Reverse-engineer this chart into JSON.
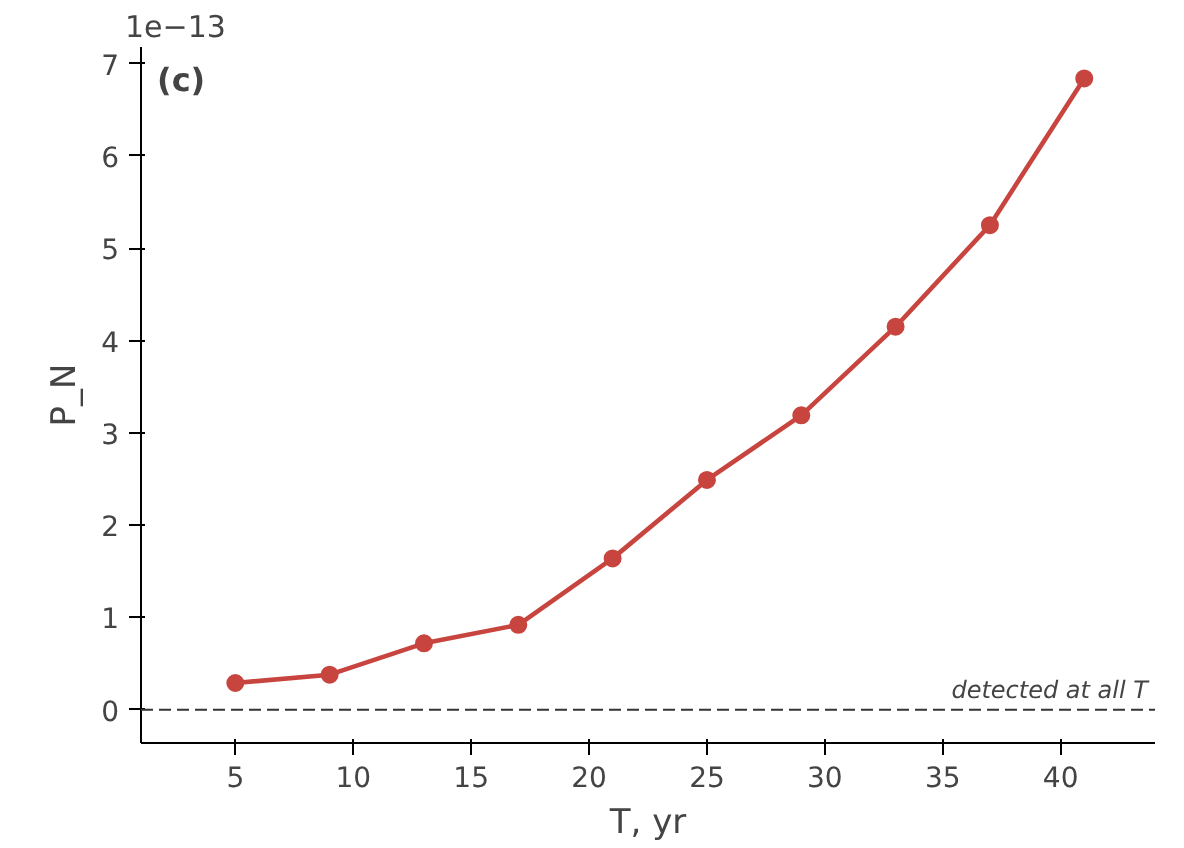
{
  "chart_data": {
    "type": "line",
    "title": "(c)",
    "xlabel": "T, yr",
    "ylabel": "P_N",
    "x": [
      5,
      9,
      13,
      17,
      21,
      25,
      29,
      33,
      37,
      41
    ],
    "series": [
      {
        "color": "#c8453f",
        "values": [
          0.29,
          0.38,
          0.72,
          0.92,
          1.64,
          2.49,
          3.19,
          4.15,
          5.25,
          6.84
        ]
      }
    ],
    "marker": "circle",
    "line_style": "solid",
    "xlim": [
      1,
      44
    ],
    "xticks": [
      5,
      10,
      15,
      20,
      25,
      30,
      35,
      40
    ],
    "ylim": [
      -0.36,
      7.18
    ],
    "yticks": [
      0,
      1,
      2,
      3,
      4,
      5,
      6,
      7
    ],
    "ref_lines": [
      {
        "axis": "y",
        "value": 0,
        "label": "detected at all T",
        "color": "#333333",
        "line_style": "dashed"
      }
    ],
    "annotations": [
      "1e−13"
    ]
  }
}
